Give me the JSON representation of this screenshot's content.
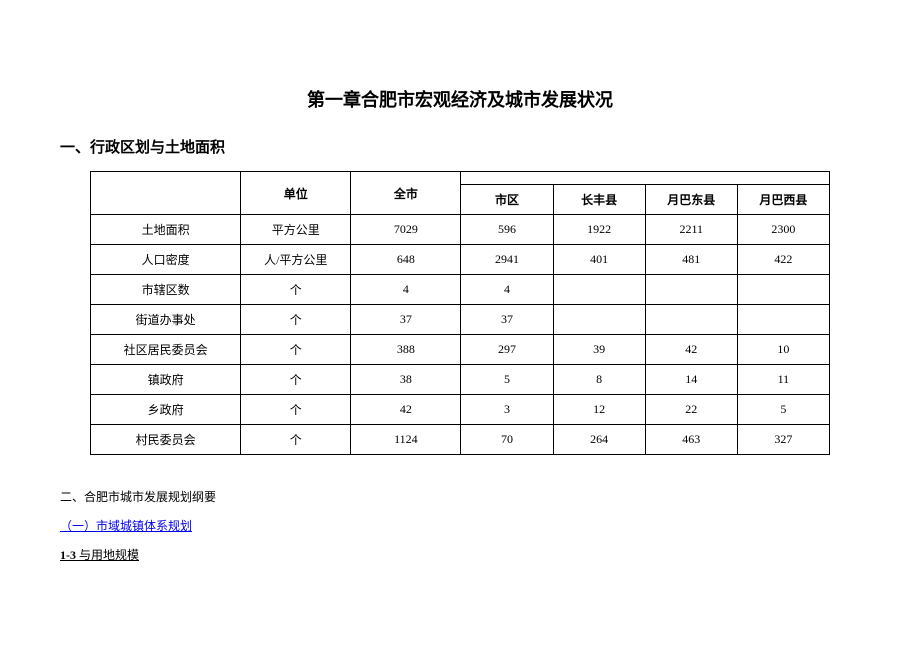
{
  "chapter_title": "第一章合肥市宏观经济及城市发展状况",
  "section1_heading": "一、行政区划与土地面积",
  "table": {
    "header": {
      "unit": "单位",
      "total": "全市",
      "sub": [
        "市区",
        "长丰县",
        "月巴东县",
        "月巴西县"
      ]
    },
    "rows": [
      {
        "name": "土地面积",
        "unit": "平方公里",
        "total": "7029",
        "sub": [
          "596",
          "1922",
          "2211",
          "2300"
        ]
      },
      {
        "name": "人口密度",
        "unit": "人/平方公里",
        "total": "648",
        "sub": [
          "2941",
          "401",
          "481",
          "422"
        ]
      },
      {
        "name": "市辖区数",
        "unit": "个",
        "total": "4",
        "sub": [
          "4",
          "",
          "",
          ""
        ]
      },
      {
        "name": "街道办事处",
        "unit": "个",
        "total": "37",
        "sub": [
          "37",
          "",
          "",
          ""
        ]
      },
      {
        "name": "社区居民委员会",
        "unit": "个",
        "total": "388",
        "sub": [
          "297",
          "39",
          "42",
          "10"
        ]
      },
      {
        "name": "镇政府",
        "unit": "个",
        "total": "38",
        "sub": [
          "5",
          "8",
          "14",
          "11"
        ]
      },
      {
        "name": "乡政府",
        "unit": "个",
        "total": "42",
        "sub": [
          "3",
          "12",
          "22",
          "5"
        ]
      },
      {
        "name": "村民委员会",
        "unit": "个",
        "total": "1124",
        "sub": [
          "70",
          "264",
          "463",
          "327"
        ]
      }
    ]
  },
  "footer": {
    "line1": "二、合肥市城市发展规划纲要",
    "link": "（一）市域城镇体系规划",
    "line3_bold": "1-3",
    "line3_rest": " 与用地规模"
  },
  "colors": {
    "background": "#ffffff",
    "text": "#000000",
    "border": "#000000",
    "link": "#0000ee"
  }
}
